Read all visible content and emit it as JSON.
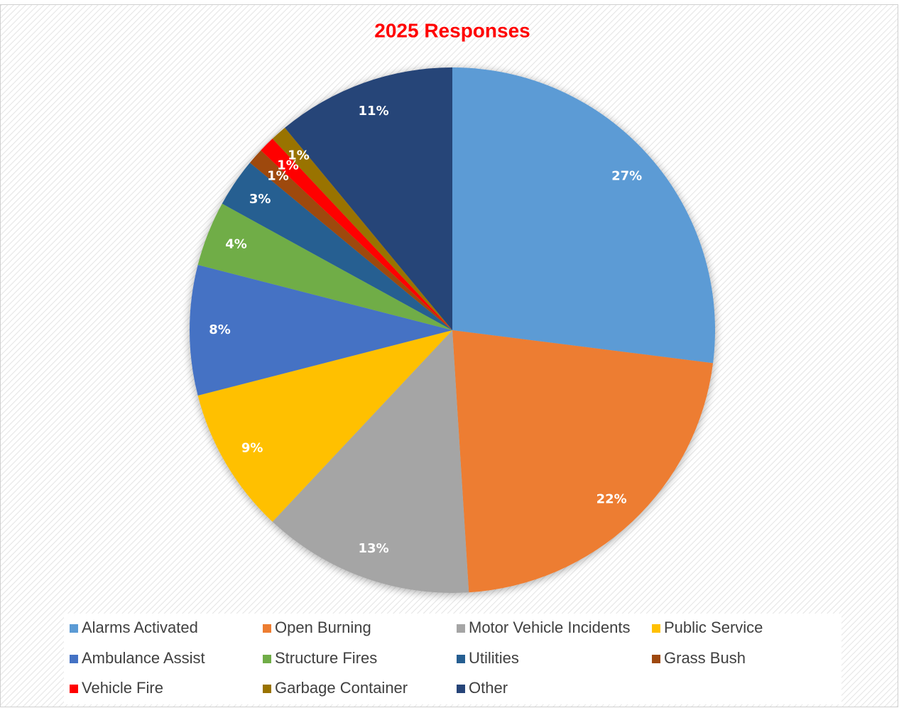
{
  "chart_data": {
    "type": "pie",
    "title": "2025 Responses",
    "categories": [
      "Alarms Activated",
      "Open Burning",
      "Motor Vehicle Incidents",
      "Public Service",
      "Ambulance Assist",
      "Structure Fires",
      "Utilities",
      "Grass Bush",
      "Vehicle Fire",
      "Garbage Container",
      "Other"
    ],
    "values": [
      27,
      22,
      13,
      9,
      8,
      4,
      3,
      1,
      1,
      1,
      11
    ],
    "value_labels": [
      "27%",
      "22%",
      "13%",
      "9%",
      "8%",
      "4%",
      "3%",
      "1%",
      "1%",
      "1%",
      "11%"
    ],
    "colors": [
      "#5b9bd5",
      "#ed7d31",
      "#a5a5a5",
      "#ffc000",
      "#4472c4",
      "#70ad47",
      "#255e91",
      "#9e480e",
      "#ff0000",
      "#997300",
      "#264478"
    ],
    "legend": "bottom"
  }
}
